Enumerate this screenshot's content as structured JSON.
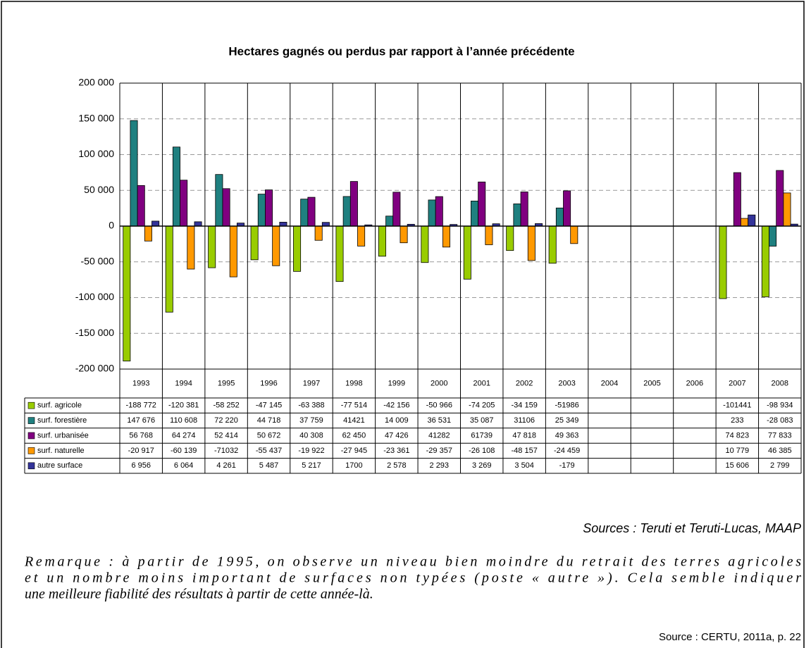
{
  "chart_data": {
    "type": "bar",
    "title": "Hectares gagnés ou perdus par rapport à l’année précédente",
    "categories": [
      "1993",
      "1994",
      "1995",
      "1996",
      "1997",
      "1998",
      "1999",
      "2000",
      "2001",
      "2002",
      "2003",
      "2004",
      "2005",
      "2006",
      "2007",
      "2008"
    ],
    "ylim": [
      -200000,
      200000
    ],
    "yticks": [
      {
        "value": -200000,
        "label": "-200 000"
      },
      {
        "value": -150000,
        "label": "-150 000"
      },
      {
        "value": -100000,
        "label": "-100 000"
      },
      {
        "value": -50000,
        "label": "-50 000"
      },
      0,
      {
        "value": 50000,
        "label": "50 000"
      },
      {
        "value": 100000,
        "label": "100 000"
      },
      {
        "value": 150000,
        "label": "150 000"
      },
      {
        "value": 200000,
        "label": "200 000"
      }
    ],
    "grid": true,
    "series": [
      {
        "name": "surf. agricole",
        "color": "#99cc00",
        "values": [
          -188772,
          -120381,
          -58252,
          -47145,
          -63388,
          -77514,
          -42156,
          -50966,
          -74205,
          -34159,
          -51986,
          null,
          null,
          null,
          -101441,
          -98934
        ],
        "value_labels": [
          "-188 772",
          "-120 381",
          "-58 252",
          "-47 145",
          "-63 388",
          "-77 514",
          "-42 156",
          "-50 966",
          "-74 205",
          "-34 159",
          "-51986",
          null,
          null,
          null,
          "-101441",
          "-98 934"
        ]
      },
      {
        "name": "surf. forestière",
        "color": "#1f8080",
        "values": [
          147676,
          110608,
          72220,
          44718,
          37759,
          41421,
          14009,
          36531,
          35087,
          31106,
          25349,
          null,
          null,
          null,
          233,
          -28083
        ],
        "value_labels": [
          "147 676",
          "110 608",
          "72 220",
          "44 718",
          "37 759",
          "41421",
          "14 009",
          "36 531",
          "35 087",
          "31106",
          "25 349",
          null,
          null,
          null,
          "233",
          "-28 083"
        ]
      },
      {
        "name": "surf. urbanisée",
        "color": "#800080",
        "values": [
          56768,
          64274,
          52414,
          50672,
          40308,
          62450,
          47426,
          41282,
          61739,
          47818,
          49363,
          null,
          null,
          null,
          74823,
          77833
        ],
        "value_labels": [
          "56 768",
          "64 274",
          "52 414",
          "50 672",
          "40 308",
          "62 450",
          "47 426",
          "41282",
          "61739",
          "47 818",
          "49 363",
          null,
          null,
          null,
          "74 823",
          "77 833"
        ]
      },
      {
        "name": "surf. naturelle",
        "color": "#ff9900",
        "values": [
          -20917,
          -60139,
          -71032,
          -55437,
          -19922,
          -27945,
          -23361,
          -29357,
          -26108,
          -48157,
          -24459,
          null,
          null,
          null,
          10779,
          46385
        ],
        "value_labels": [
          "-20 917",
          "-60 139",
          "-71032",
          "-55 437",
          "-19 922",
          "-27 945",
          "-23 361",
          "-29 357",
          "-26 108",
          "-48 157",
          "-24 459",
          null,
          null,
          null,
          "10 779",
          "46 385"
        ]
      },
      {
        "name": "autre surface",
        "color": "#333399",
        "values": [
          6956,
          6064,
          4261,
          5487,
          5217,
          1700,
          2578,
          2293,
          3269,
          3504,
          -179,
          null,
          null,
          null,
          15606,
          2799
        ],
        "value_labels": [
          "6 956",
          "6 064",
          "4 261",
          "5 487",
          "5 217",
          "1700",
          "2 578",
          "2 293",
          "3 269",
          "3 504",
          "-179",
          null,
          null,
          null,
          "15 606",
          "2 799"
        ]
      }
    ],
    "sources": "Sources : Teruti et Teruti-Lucas, MAAP",
    "remark": [
      "Remarque : à partir de 1995, on observe un niveau bien moindre du retrait des terres agricoles",
      "et un nombre moins important de surfaces non typées (poste « autre »). Cela semble indiquer",
      "une meilleure fiabilité des résultats à partir de cette année-là."
    ],
    "citation": "Source : CERTU, 2011a, p. 22"
  }
}
